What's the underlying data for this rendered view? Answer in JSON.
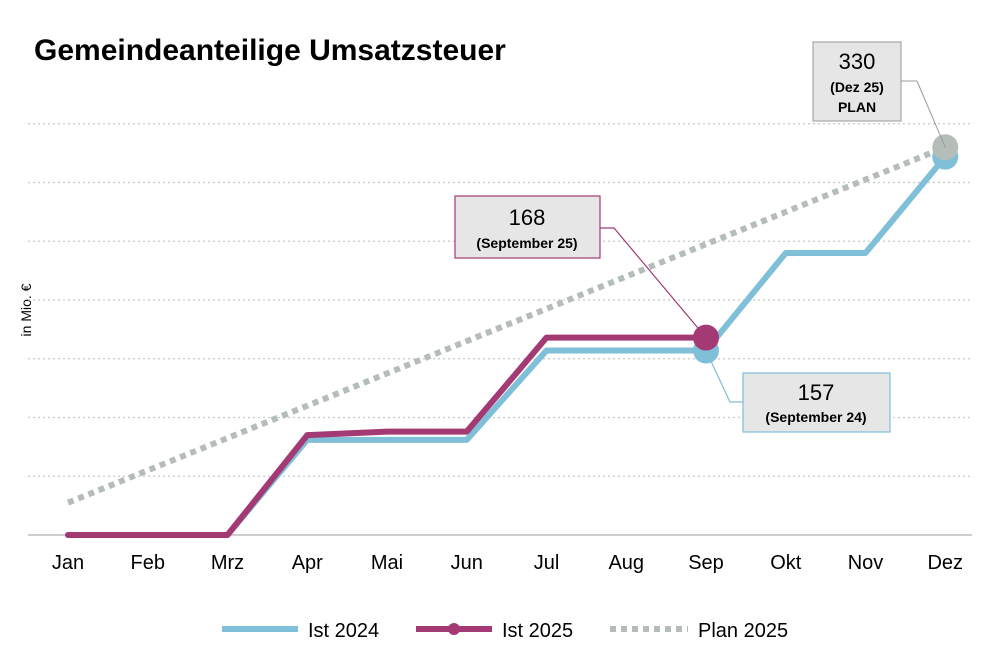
{
  "colors": {
    "ist2024": "#7fbfd8",
    "ist2025": "#a33a73",
    "plan2025": "#b5bdb9",
    "grid": "#c8c8c8",
    "axis": "#bdbdbd"
  },
  "chart_data": {
    "type": "line",
    "title": "Gemeindeanteilige Umsatzsteuer",
    "ylabel": "in Mio. €",
    "xlabel": "",
    "ylim": [
      0,
      350
    ],
    "grid": true,
    "legend_position": "bottom",
    "categories": [
      "Jan",
      "Feb",
      "Mrz",
      "Apr",
      "Mai",
      "Jun",
      "Jul",
      "Aug",
      "Sep",
      "Okt",
      "Nov",
      "Dez"
    ],
    "series": [
      {
        "name": "Ist 2024",
        "values": [
          0,
          0,
          0,
          81,
          81,
          81,
          157,
          157,
          157,
          240,
          240,
          322
        ]
      },
      {
        "name": "Ist 2025",
        "values": [
          0,
          0,
          0,
          85,
          88,
          88,
          168,
          168,
          168,
          null,
          null,
          null
        ]
      },
      {
        "name": "Plan 2025",
        "values": [
          27.5,
          55,
          82.5,
          110,
          137.5,
          165,
          192.5,
          220,
          247.5,
          275,
          302.5,
          330
        ]
      }
    ],
    "annotations": [
      {
        "id": "plan",
        "value": "330",
        "label1": "(Dez 25)",
        "label2": "PLAN"
      },
      {
        "id": "ist2025",
        "value": "168",
        "label1": "(September 25)"
      },
      {
        "id": "ist2024",
        "value": "157",
        "label1": "(September 24)"
      }
    ]
  }
}
